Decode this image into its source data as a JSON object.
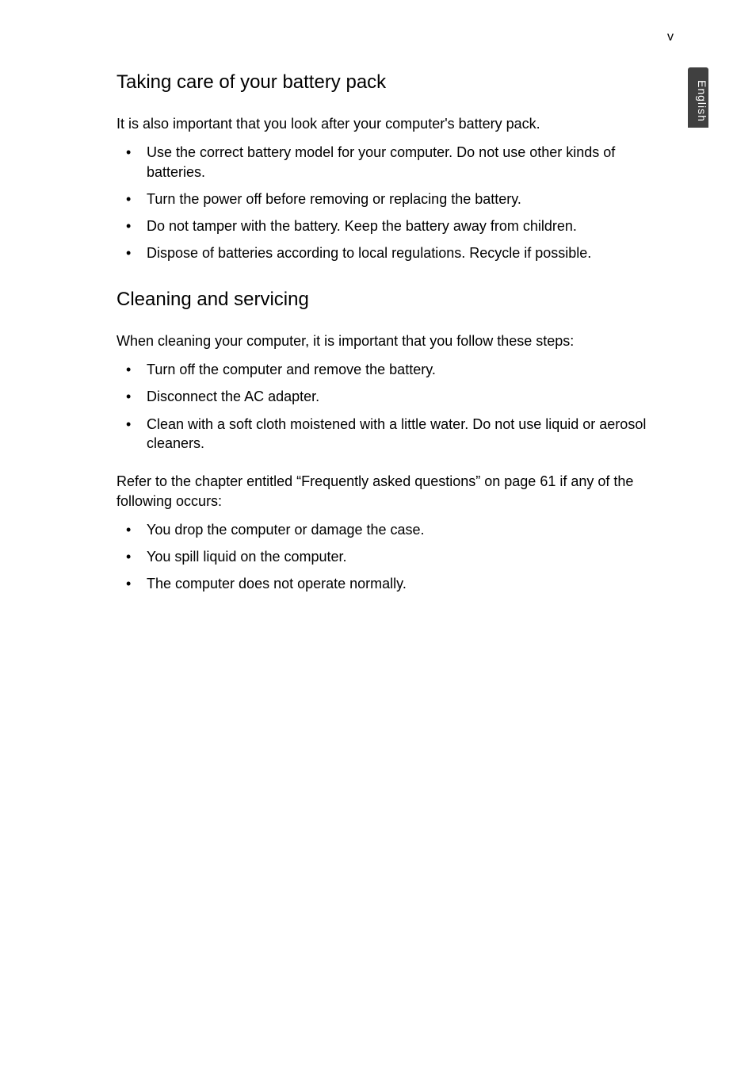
{
  "page_number": "v",
  "side_tab_label": "English",
  "styles": {
    "background_color": "#ffffff",
    "text_color": "#000000",
    "tab_background": "#404040",
    "tab_text_color": "#ffffff",
    "body_font_size": 18,
    "heading_font_size": 24,
    "page_number_font_size": 16
  },
  "sections": [
    {
      "heading": "Taking care of your battery pack",
      "intro": "It is also important that you look after your computer's battery pack.",
      "bullets": [
        "Use the correct battery model for your computer. Do not use other kinds of batteries.",
        "Turn the power off before removing or replacing the battery.",
        "Do not tamper with the battery. Keep the battery away from children.",
        "Dispose of batteries according to local regulations. Recycle if possible."
      ]
    },
    {
      "heading": "Cleaning and servicing",
      "intro": "When cleaning your computer, it is important that you follow these steps:",
      "bullets": [
        "Turn off the computer and remove the battery.",
        "Disconnect the AC adapter.",
        "Clean with a soft cloth moistened with a little water. Do not use liquid or aerosol cleaners."
      ],
      "intro2": "Refer to the chapter entitled “Frequently asked questions” on page 61 if any of the following occurs:",
      "bullets2": [
        "You drop the computer or damage the case.",
        "You spill liquid on the computer.",
        "The computer does not operate normally."
      ]
    }
  ]
}
